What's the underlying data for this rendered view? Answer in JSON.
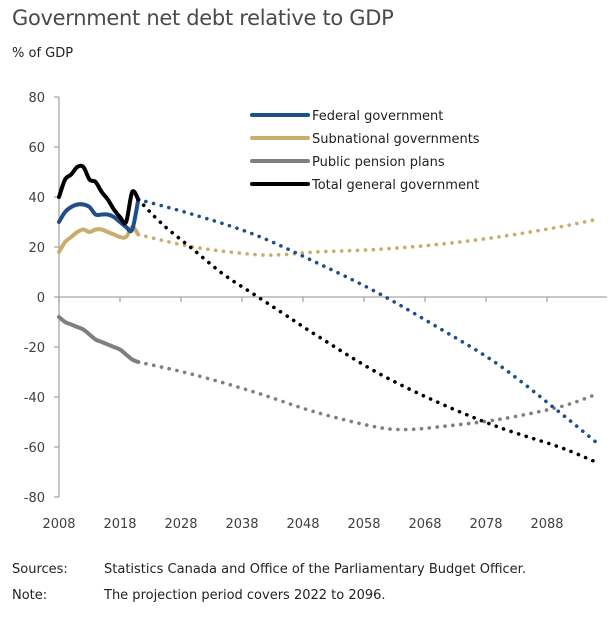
{
  "title": "Government net debt relative to GDP",
  "unit_label": "% of GDP",
  "sources_label": "Sources:",
  "sources_text": "Statistics Canada and Office of the Parliamentary Budget Officer.",
  "note_label": "Note:",
  "note_text": "The projection period covers 2022 to 2096.",
  "chart_data": {
    "type": "line",
    "title": "Government net debt relative to GDP",
    "xlabel": "",
    "ylabel": "% of GDP",
    "xlim": [
      2008,
      2097
    ],
    "ylim": [
      -80,
      80
    ],
    "yticks": [
      80,
      60,
      40,
      20,
      0,
      -20,
      -40,
      -60,
      -80
    ],
    "xticks": [
      2008,
      2018,
      2028,
      2038,
      2048,
      2058,
      2068,
      2078,
      2088
    ],
    "grid": false,
    "legend_position": "top-right",
    "projection_start": 2022,
    "series": [
      {
        "name": "Federal government",
        "color": "#1f4e8c",
        "historical": {
          "x": [
            2008,
            2009,
            2010,
            2011,
            2012,
            2013,
            2014,
            2015,
            2016,
            2017,
            2018,
            2019,
            2020,
            2021
          ],
          "y": [
            30,
            34,
            36,
            37,
            37,
            36,
            33,
            33,
            33,
            32,
            30,
            28,
            27,
            39
          ]
        },
        "projection": {
          "x": [
            2021,
            2030,
            2040,
            2050,
            2060,
            2070,
            2080,
            2090,
            2096
          ],
          "y": [
            39,
            33,
            25,
            14,
            2,
            -12,
            -27,
            -46,
            -58
          ]
        }
      },
      {
        "name": "Subnational governments",
        "color": "#c8ad6e",
        "historical": {
          "x": [
            2008,
            2009,
            2010,
            2011,
            2012,
            2013,
            2014,
            2015,
            2016,
            2017,
            2018,
            2019,
            2020,
            2021
          ],
          "y": [
            18,
            22,
            24,
            26,
            27,
            26,
            27,
            27,
            26,
            25,
            24,
            24,
            28,
            25
          ]
        },
        "projection": {
          "x": [
            2021,
            2030,
            2040,
            2045,
            2050,
            2060,
            2070,
            2080,
            2090,
            2096
          ],
          "y": [
            25,
            20,
            17,
            17,
            18,
            19,
            21,
            24,
            28,
            31
          ]
        }
      },
      {
        "name": "Public pension plans",
        "color": "#7f7f7f",
        "historical": {
          "x": [
            2008,
            2009,
            2010,
            2011,
            2012,
            2013,
            2014,
            2015,
            2016,
            2017,
            2018,
            2019,
            2020,
            2021
          ],
          "y": [
            -8,
            -10,
            -11,
            -12,
            -13,
            -15,
            -17,
            -18,
            -19,
            -20,
            -21,
            -23,
            -25,
            -26
          ]
        },
        "projection": {
          "x": [
            2021,
            2030,
            2040,
            2050,
            2060,
            2065,
            2070,
            2080,
            2090,
            2096
          ],
          "y": [
            -26,
            -31,
            -38,
            -46,
            -52,
            -53,
            -52,
            -49,
            -44,
            -39
          ]
        }
      },
      {
        "name": "Total general government",
        "color": "#000000",
        "historical": {
          "x": [
            2008,
            2009,
            2010,
            2011,
            2012,
            2013,
            2014,
            2015,
            2016,
            2017,
            2018,
            2019,
            2020,
            2021
          ],
          "y": [
            40,
            47,
            49,
            52,
            52,
            47,
            46,
            42,
            39,
            35,
            32,
            30,
            42,
            39
          ]
        },
        "projection": {
          "x": [
            2021,
            2025,
            2030,
            2035,
            2040,
            2045,
            2050,
            2060,
            2070,
            2080,
            2090,
            2096
          ],
          "y": [
            39,
            29,
            19,
            9,
            1,
            -7,
            -15,
            -30,
            -42,
            -52,
            -60,
            -66
          ]
        }
      }
    ]
  }
}
